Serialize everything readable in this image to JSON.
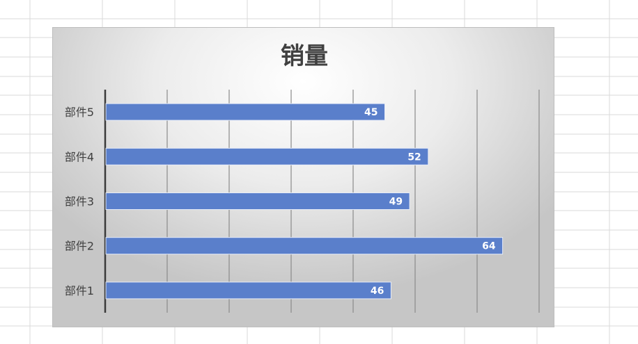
{
  "chart_data": {
    "type": "bar",
    "orientation": "horizontal",
    "title": "销量",
    "categories": [
      "部件1",
      "部件2",
      "部件3",
      "部件4",
      "部件5"
    ],
    "values": [
      46,
      64,
      49,
      52,
      45
    ],
    "data_labels": true,
    "xlim": [
      0,
      70
    ],
    "grid": true,
    "legend": "none",
    "colors": {
      "bar": "#5a7fcb",
      "bar_edge": "#e6ecf8",
      "label": "#ffffff",
      "text": "#404040",
      "gridline": "#8a8a8a",
      "axis": "#3a3a3a"
    }
  }
}
